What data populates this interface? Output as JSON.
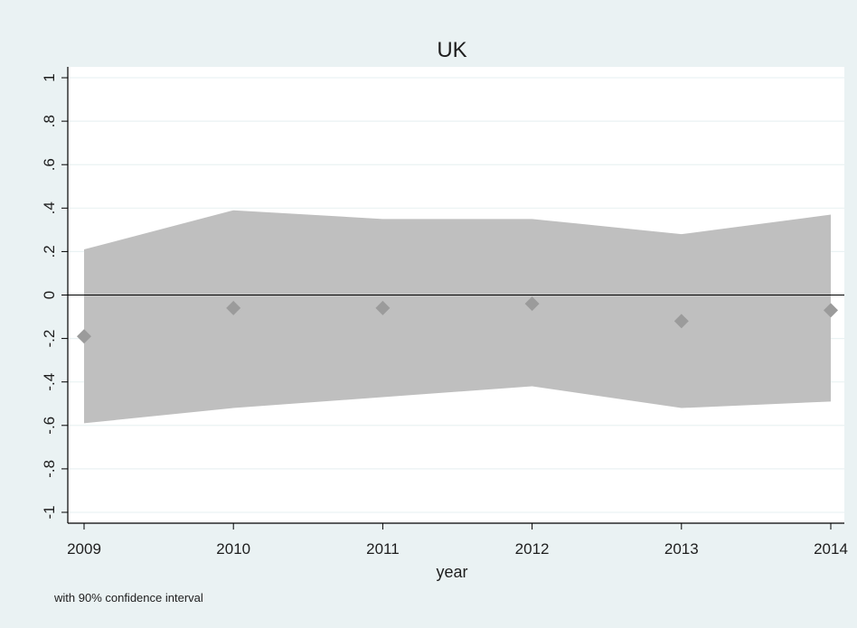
{
  "colors": {
    "outer_background": "#eaf2f3",
    "plot_background": "#ffffff",
    "grid": "#eaf2f3",
    "band": "#bfbfbf",
    "marker": "#9b9b9b",
    "axis": "#000000",
    "zero_line": "#000000"
  },
  "chart_data": {
    "type": "scatter",
    "title": "UK",
    "xlabel": "year",
    "ylabel": "",
    "note": "with 90% confidence interval",
    "xlim": [
      2009,
      2014
    ],
    "ylim": [
      -1.05,
      1.05
    ],
    "x": [
      2009,
      2010,
      2011,
      2012,
      2013,
      2014
    ],
    "y_ticks": [
      -1,
      -0.8,
      -0.6,
      -0.4,
      -0.2,
      0,
      0.2,
      0.4,
      0.6,
      0.8,
      1
    ],
    "y_tick_labels": [
      "-1",
      "-.8",
      "-.6",
      "-.4",
      "-.2",
      "0",
      ".2",
      ".4",
      ".6",
      ".8",
      "1"
    ],
    "x_tick_labels": [
      "2009",
      "2010",
      "2011",
      "2012",
      "2013",
      "2014"
    ],
    "series": [
      {
        "values": [
          -0.19,
          -0.06,
          -0.06,
          -0.04,
          -0.12,
          -0.07
        ],
        "marker": "diamond"
      }
    ],
    "confidence_band": {
      "level": "90%",
      "upper": [
        0.21,
        0.39,
        0.35,
        0.35,
        0.28,
        0.37
      ],
      "lower": [
        -0.59,
        -0.52,
        -0.47,
        -0.42,
        -0.52,
        -0.49
      ]
    },
    "reference_line_y": 0,
    "grid": true,
    "legend": "none"
  }
}
